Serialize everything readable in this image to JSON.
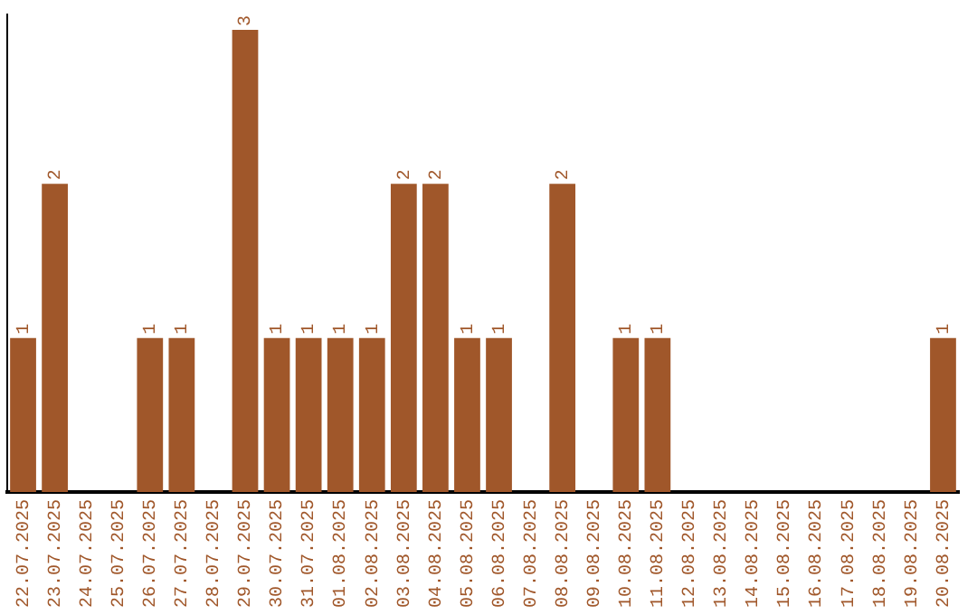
{
  "chart_data": {
    "type": "bar",
    "categories": [
      "22.07.2025",
      "23.07.2025",
      "24.07.2025",
      "25.07.2025",
      "26.07.2025",
      "27.07.2025",
      "28.07.2025",
      "29.07.2025",
      "30.07.2025",
      "31.07.2025",
      "01.08.2025",
      "02.08.2025",
      "03.08.2025",
      "04.08.2025",
      "05.08.2025",
      "06.08.2025",
      "07.08.2025",
      "08.08.2025",
      "09.08.2025",
      "10.08.2025",
      "11.08.2025",
      "12.08.2025",
      "13.08.2025",
      "14.08.2025",
      "15.08.2025",
      "16.08.2025",
      "17.08.2025",
      "18.08.2025",
      "19.08.2025",
      "20.08.2025"
    ],
    "values": [
      1,
      2,
      0,
      0,
      1,
      1,
      0,
      3,
      1,
      1,
      1,
      1,
      2,
      2,
      1,
      1,
      0,
      2,
      0,
      1,
      1,
      0,
      0,
      0,
      0,
      0,
      0,
      0,
      0,
      1
    ],
    "value_labels": [
      "1",
      "2",
      null,
      null,
      "1",
      "1",
      null,
      "3",
      "1",
      "1",
      "1",
      "1",
      "2",
      "2",
      "1",
      "1",
      null,
      "2",
      null,
      "1",
      "1",
      null,
      null,
      null,
      null,
      null,
      null,
      null,
      null,
      "1"
    ],
    "color": "#a0572a",
    "ylim": [
      0,
      3.1
    ],
    "tick_labels": "x",
    "grid": false,
    "legend": false
  }
}
